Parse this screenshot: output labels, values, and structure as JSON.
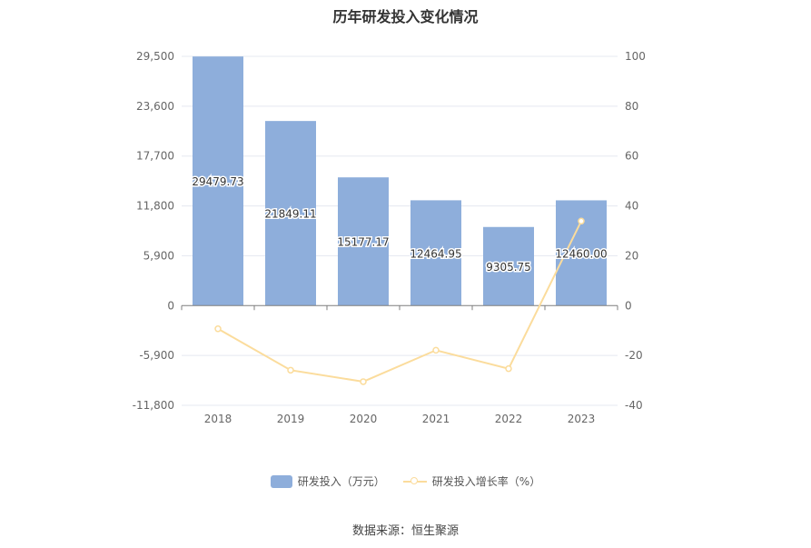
{
  "title": "历年研发投入变化情况",
  "source": "数据来源：恒生聚源",
  "colors": {
    "bar": "#8eaedb",
    "line": "#fbdc9c",
    "axis": "#7f7f7f",
    "grid": "#e5e8f0",
    "text": "#666666"
  },
  "chart_data": {
    "type": "bar",
    "categories": [
      "2018",
      "2019",
      "2020",
      "2021",
      "2022",
      "2023"
    ],
    "series": [
      {
        "name": "研发投入（万元）",
        "type": "bar",
        "axis": "left",
        "values": [
          29479.73,
          21849.11,
          15177.17,
          12464.95,
          9305.75,
          12460.0
        ],
        "labels": [
          "29479.73",
          "21849.11",
          "15177.17",
          "12464.95",
          "9305.75",
          "12460.00"
        ]
      },
      {
        "name": "研发投入增长率（%）",
        "type": "line",
        "axis": "right",
        "values": [
          -9.3,
          -25.9,
          -30.5,
          -17.9,
          -25.3,
          33.9
        ]
      }
    ],
    "y_left": {
      "ticks": [
        29500,
        23600,
        17700,
        11800,
        5900,
        0,
        -5900,
        -11800
      ],
      "tick_labels": [
        "29,500",
        "23,600",
        "17,700",
        "11,800",
        "5,900",
        "0",
        "-5,900",
        "-11,800"
      ],
      "range": [
        -11800,
        29500
      ]
    },
    "y_right": {
      "ticks": [
        100,
        80,
        60,
        40,
        20,
        0,
        -20,
        -40
      ],
      "tick_labels": [
        "100",
        "80",
        "60",
        "40",
        "20",
        "0",
        "-20",
        "-40"
      ],
      "range": [
        -40,
        100
      ]
    },
    "grid": true,
    "legend_position": "bottom"
  }
}
